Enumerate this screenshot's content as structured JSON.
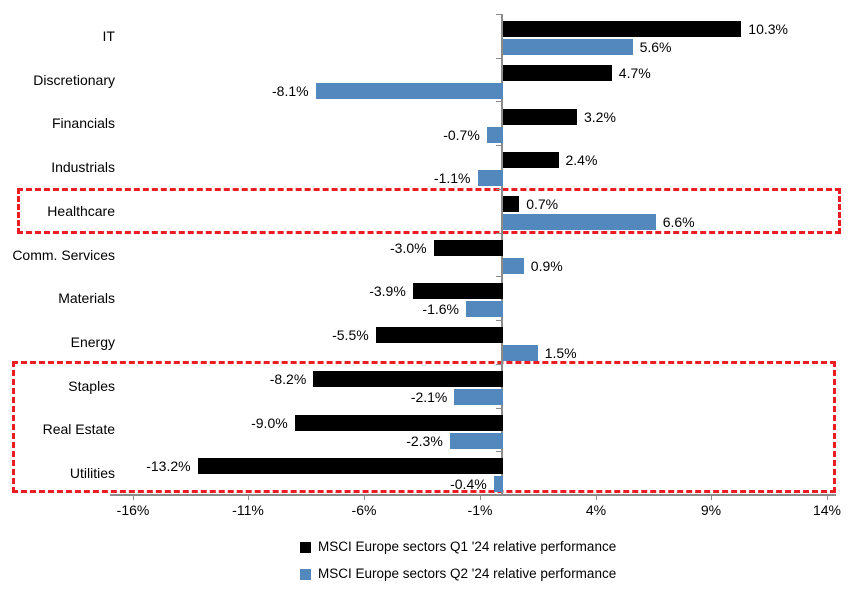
{
  "chart_data": {
    "type": "bar",
    "orientation": "horizontal",
    "title": "",
    "categories": [
      "IT",
      "Discretionary",
      "Financials",
      "Industrials",
      "Healthcare",
      "Comm. Services",
      "Materials",
      "Energy",
      "Staples",
      "Real Estate",
      "Utilities"
    ],
    "series": [
      {
        "name": "MSCI Europe sectors Q1 '24 relative performance",
        "color": "#000000",
        "values": [
          10.3,
          4.7,
          3.2,
          2.4,
          0.7,
          -3.0,
          -3.9,
          -5.5,
          -8.2,
          -9.0,
          -13.2
        ],
        "labels": [
          "10.3%",
          "4.7%",
          "3.2%",
          "2.4%",
          "0.7%",
          "-3.0%",
          "-3.9%",
          "-5.5%",
          "-8.2%",
          "-9.0%",
          "-13.2%"
        ]
      },
      {
        "name": "MSCI Europe sectors Q2 '24 relative performance",
        "color": "#5288BE",
        "values": [
          5.6,
          -8.1,
          -0.7,
          -1.1,
          6.6,
          0.9,
          -1.6,
          1.5,
          -2.1,
          -2.3,
          -0.4
        ],
        "labels": [
          "5.6%",
          "-8.1%",
          "-0.7%",
          "-1.1%",
          "6.6%",
          "0.9%",
          "-1.6%",
          "1.5%",
          "-2.1%",
          "-2.3%",
          "-0.4%"
        ]
      }
    ],
    "x_axis": {
      "tick_values": [
        -16,
        -11,
        -6,
        -1,
        4,
        9,
        14
      ],
      "tick_labels": [
        "-16%",
        "-11%",
        "-6%",
        "-1%",
        "4%",
        "9%",
        "14%"
      ],
      "min": -17,
      "max": 15,
      "unit": "%"
    },
    "grid": false,
    "legend_position": "bottom",
    "highlight_boxes": [
      {
        "from_category": "Healthcare",
        "to_category": "Healthcare",
        "color": "#EC1C24",
        "style": "dashed"
      },
      {
        "from_category": "Staples",
        "to_category": "Utilities",
        "color": "#EC1C24",
        "style": "dashed"
      }
    ]
  },
  "colors": {
    "bar_q1": "#000000",
    "bar_q2": "#5288BE",
    "axis": "#8C8C8C",
    "highlight": "#EC1C24",
    "background": "#FFFFFF"
  }
}
